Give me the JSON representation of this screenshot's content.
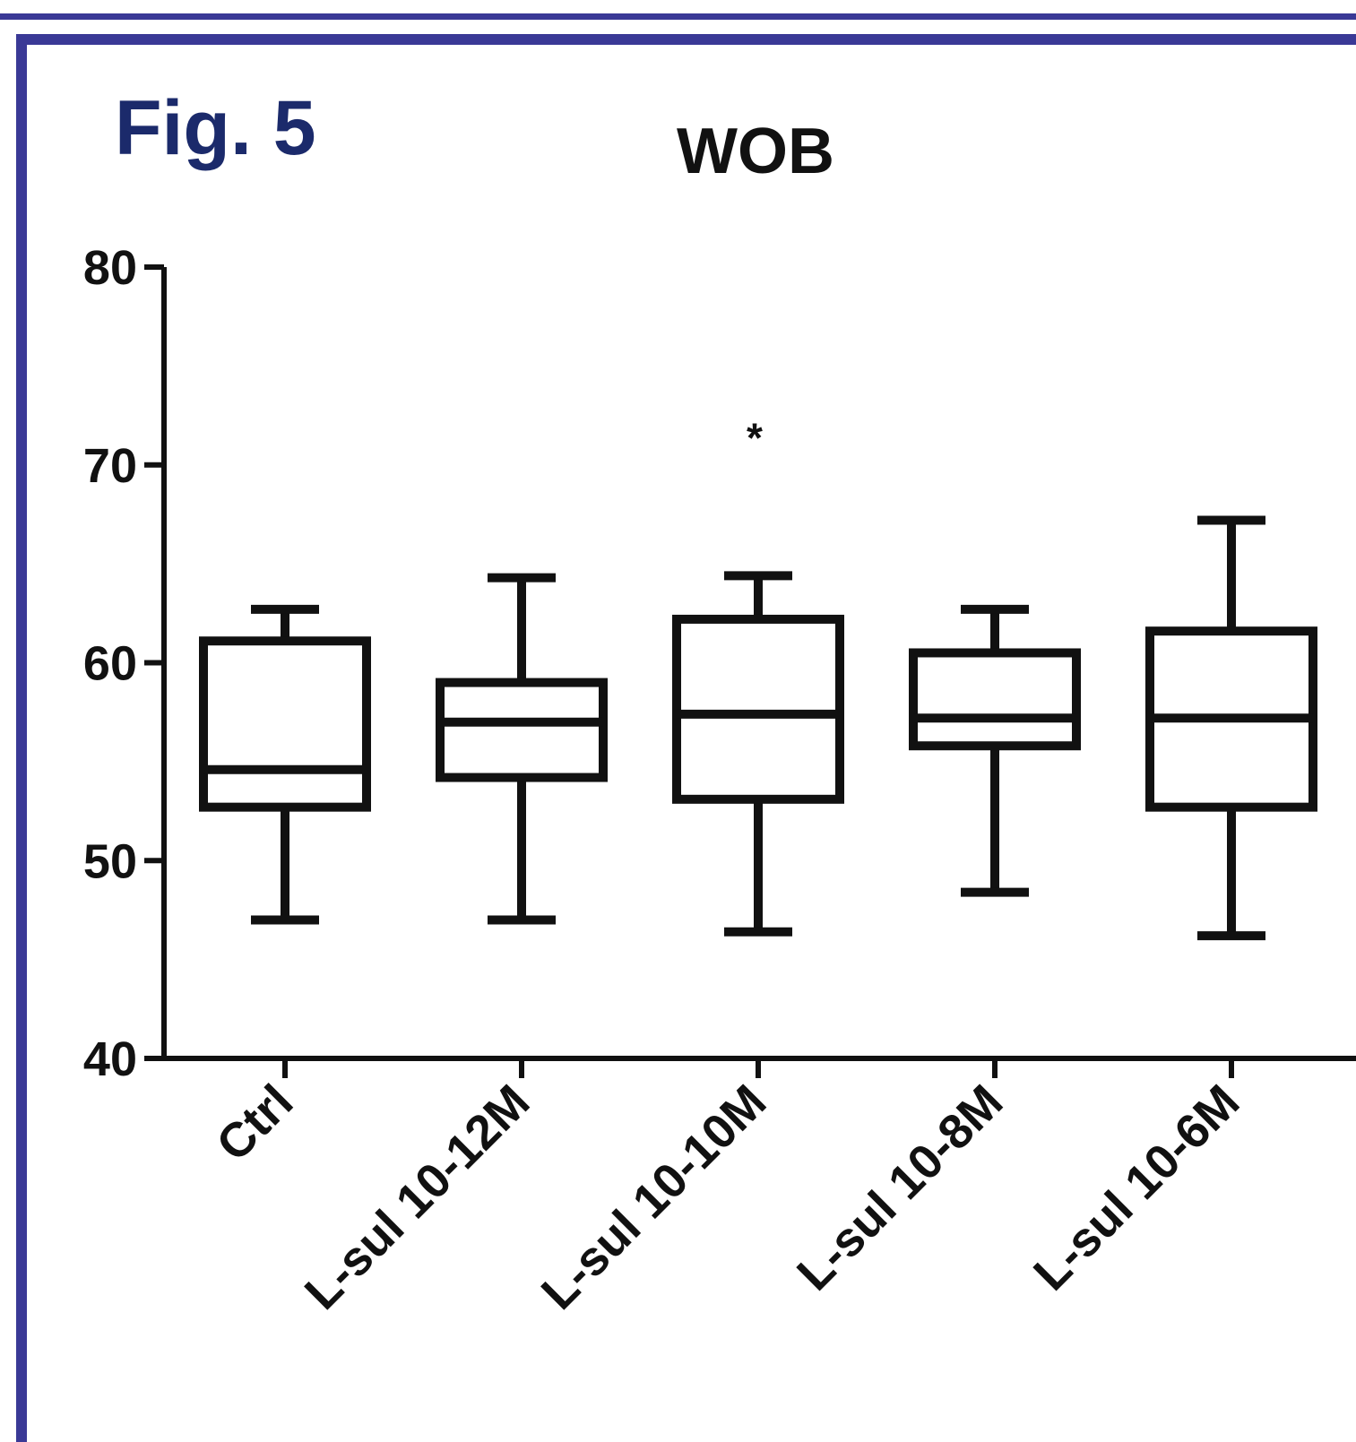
{
  "figure_label": "Fig. 5",
  "colors": {
    "frame": "#3a3996",
    "figure_label": "#1b2a6b",
    "ink": "#111111"
  },
  "chart_data": {
    "type": "box",
    "title": "WOB",
    "xlabel": "",
    "ylabel": "",
    "ylim": [
      40,
      80
    ],
    "yticks": [
      40,
      50,
      60,
      70,
      80
    ],
    "yticks_labels": [
      "40",
      "50",
      "60",
      "70",
      "80"
    ],
    "grid": false,
    "categories": [
      "Ctrl",
      "L-sul 10-12M",
      "L-sul 10-10M",
      "L-sul 10-8M",
      "L-sul 10-6M"
    ],
    "boxes": [
      {
        "min": 47.0,
        "q1": 52.7,
        "median": 54.6,
        "q3": 61.1,
        "max": 62.7
      },
      {
        "min": 47.0,
        "q1": 54.2,
        "median": 57.0,
        "q3": 59.0,
        "max": 64.3
      },
      {
        "min": 46.4,
        "q1": 53.1,
        "median": 57.4,
        "q3": 62.2,
        "max": 64.4
      },
      {
        "min": 48.4,
        "q1": 55.8,
        "median": 57.2,
        "q3": 60.5,
        "max": 62.7
      },
      {
        "min": 46.2,
        "q1": 52.7,
        "median": 57.2,
        "q3": 61.6,
        "max": 67.2
      }
    ],
    "annotations": [
      {
        "category": "L-sul 10-10M",
        "text": "*",
        "y": 72.0
      }
    ]
  }
}
